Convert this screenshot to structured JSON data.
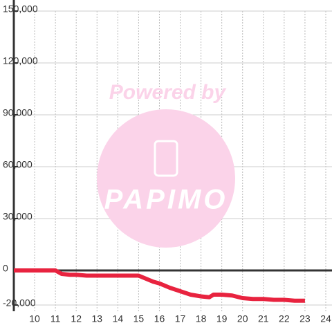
{
  "chart_data": {
    "type": "line",
    "watermark": "Powered by",
    "watermark_logo": "PAPIMO",
    "x": [
      9,
      11,
      11.3,
      11.7,
      12,
      12.5,
      15,
      15.3,
      15.7,
      16,
      16.5,
      17,
      17.5,
      18,
      18.4,
      18.6,
      19,
      19.5,
      20,
      20.5,
      21,
      21.5,
      22,
      22.5,
      23
    ],
    "series": [
      {
        "color": "#e8233f",
        "values": [
          0,
          0,
          -2000,
          -2500,
          -2500,
          -3000,
          -3000,
          -4500,
          -6500,
          -7500,
          -10000,
          -12000,
          -14000,
          -15000,
          -15500,
          -14000,
          -14000,
          -14500,
          -16000,
          -16500,
          -16500,
          -17000,
          -17000,
          -17500,
          -17500
        ]
      }
    ],
    "xlim": [
      9,
      24.3
    ],
    "ylim": [
      -20000,
      150000
    ],
    "xticks": [
      10,
      11,
      12,
      13,
      14,
      15,
      16,
      17,
      18,
      19,
      20,
      21,
      22,
      23,
      24
    ],
    "yticks": [
      {
        "value": -20000,
        "label": "-20,000"
      },
      0,
      {
        "value": 30000,
        "label": "30,000"
      },
      {
        "value": 60000,
        "label": "60,000"
      },
      {
        "value": 90000,
        "label": "90,000"
      },
      {
        "value": 120000,
        "label": "120,000"
      },
      {
        "value": 150000,
        "label": "150,000"
      }
    ],
    "grid": true
  }
}
